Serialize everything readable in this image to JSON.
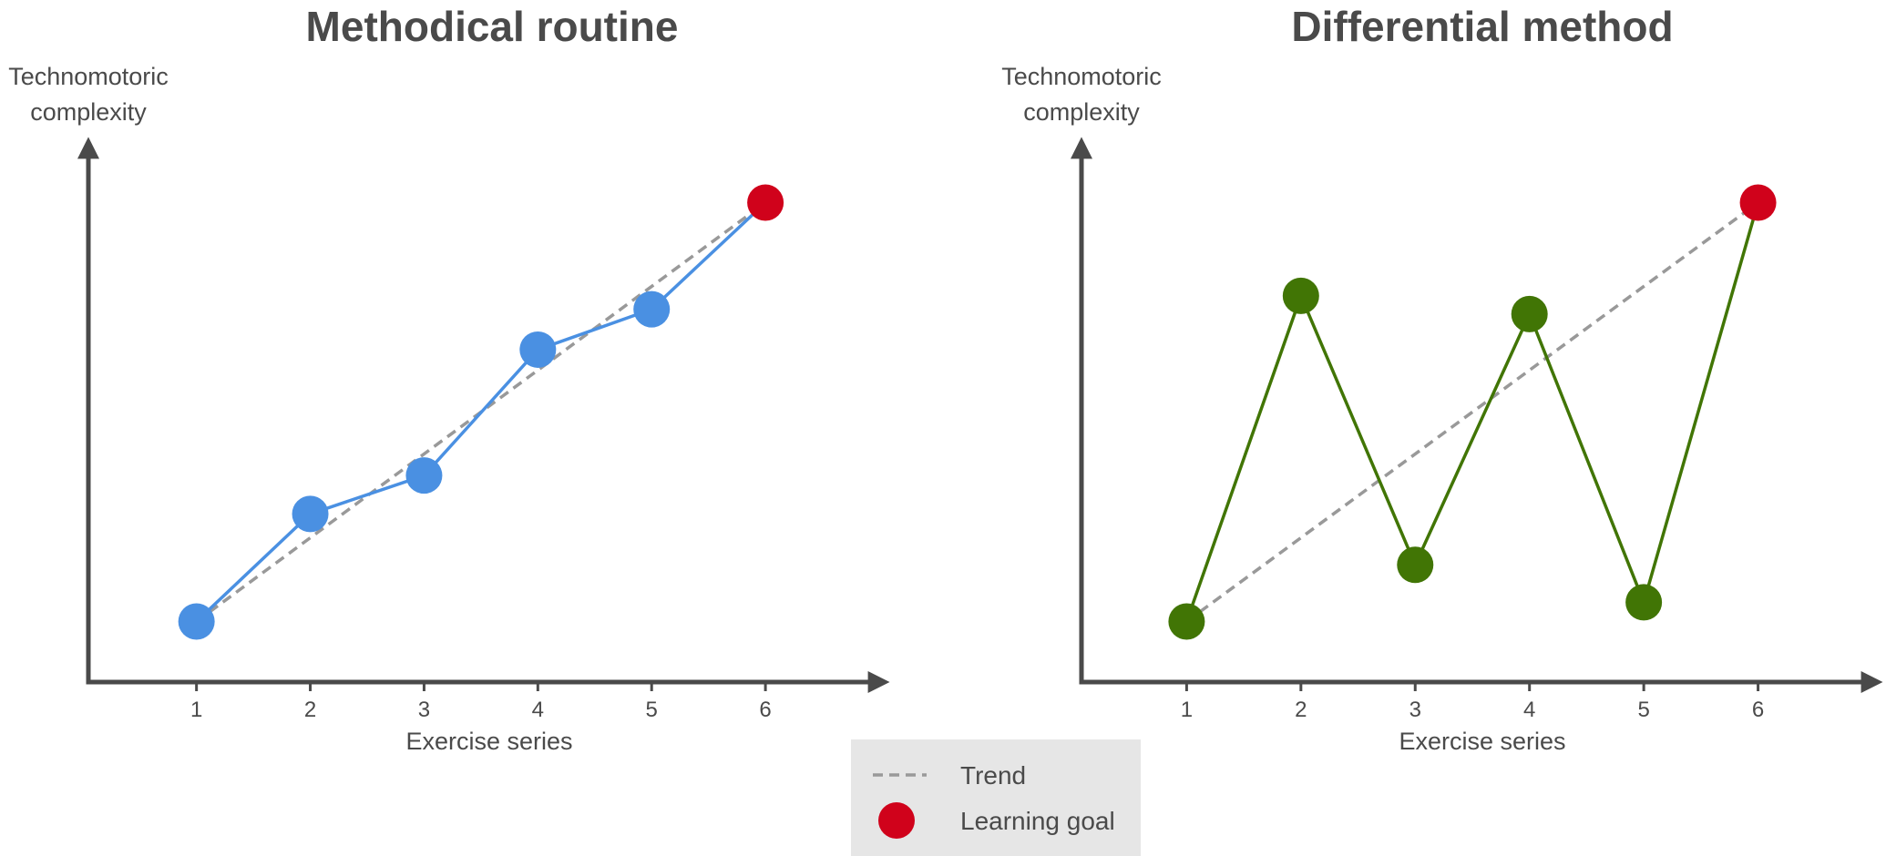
{
  "chart_data": [
    {
      "type": "line",
      "title": "Methodical routine",
      "ylabel": [
        "Technomotoric",
        "complexity"
      ],
      "xlabel": "Exercise series",
      "x": [
        1,
        2,
        3,
        4,
        5,
        6
      ],
      "series": [
        {
          "values": [
            1.0,
            2.12,
            2.52,
            3.83,
            4.25,
            5.36
          ],
          "color": "#4a90e2",
          "goal_color": "#d0021b"
        }
      ],
      "trend": {
        "from": [
          1,
          1.0
        ],
        "to": [
          6,
          5.36
        ],
        "color": "#999999",
        "style": "dashed"
      },
      "xlim": [
        0.05,
        7.0
      ],
      "ylim": [
        0.37,
        6.0
      ],
      "grid": false
    },
    {
      "type": "line",
      "title": "Differential method",
      "ylabel": [
        "Technomotoric",
        "complexity"
      ],
      "xlabel": "Exercise series",
      "x": [
        1,
        2,
        3,
        4,
        5,
        6
      ],
      "series": [
        {
          "values": [
            1.0,
            4.39,
            1.59,
            4.2,
            1.2,
            5.36
          ],
          "color": "#417505",
          "goal_color": "#d0021b"
        }
      ],
      "trend": {
        "from": [
          1,
          1.0
        ],
        "to": [
          6,
          5.36
        ],
        "color": "#999999",
        "style": "dashed"
      },
      "xlim": [
        0.08,
        7.0
      ],
      "ylim": [
        0.37,
        6.0
      ],
      "grid": false
    }
  ],
  "legend": {
    "items": [
      {
        "label": "Trend",
        "marker": "dashed-line",
        "color": "#999999"
      },
      {
        "label": "Learning goal",
        "marker": "circle",
        "color": "#d0021b"
      }
    ],
    "placement": "bottom-center",
    "background": "#e6e6e6"
  },
  "axis_color": "#4a4a4a"
}
